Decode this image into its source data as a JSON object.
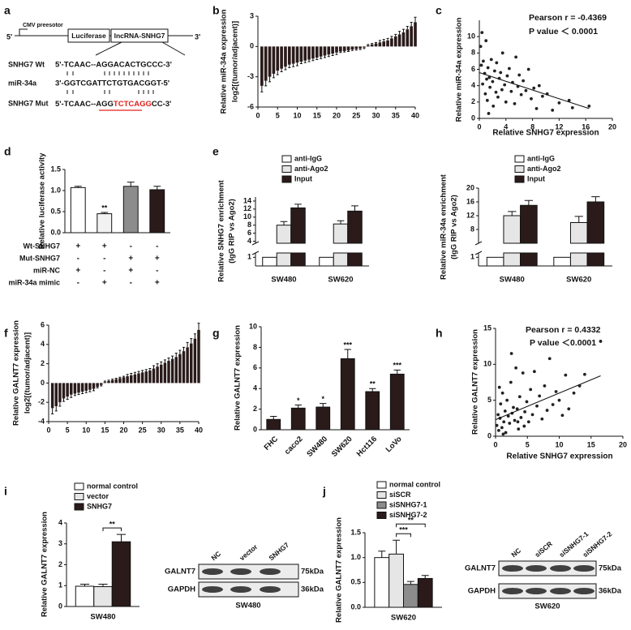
{
  "diagram": {
    "label": "a",
    "five_prime": "5'",
    "promoter": "CMV preesotor",
    "luciferase": "Luciferase",
    "lncrna": "lncRNA-SNHG7",
    "three_prime": "3'",
    "rows": [
      {
        "name": "SNHG7 Wt",
        "sequence": [
          "5'-TCAAC--AGGACACTGCCC-3'"
        ]
      },
      {
        "name": "miR-34a",
        "sequence": [
          "3'-GGTCGATTCTGTGACGGT-5'"
        ]
      },
      {
        "name": "SNHG7 Mut",
        "sequence": [
          "5'-TCAAC--AGG",
          "TCTCAGG",
          "CC-3'"
        ]
      }
    ]
  },
  "chart_data": [
    {
      "type": "bar",
      "label": "b",
      "ylabel": [
        "Relative miR-34a expression",
        "log2[(tumor/adjacent)]"
      ],
      "color": "#2a1a1a",
      "x": [
        1,
        2,
        3,
        4,
        5,
        6,
        7,
        8,
        9,
        10,
        11,
        12,
        13,
        14,
        15,
        16,
        17,
        18,
        19,
        20,
        21,
        22,
        23,
        24,
        25,
        26,
        27,
        28,
        29,
        30,
        31,
        32,
        33,
        34,
        35,
        36,
        37,
        38,
        39,
        40
      ],
      "values": [
        -3.9,
        -3.4,
        -3.0,
        -2.7,
        -2.4,
        -2.2,
        -2.0,
        -1.8,
        -1.7,
        -1.6,
        -1.5,
        -1.4,
        -1.3,
        -1.2,
        -1.1,
        -1.0,
        -0.9,
        -0.8,
        -0.7,
        -0.6,
        -0.5,
        -0.45,
        -0.4,
        -0.3,
        -0.25,
        -0.2,
        -0.1,
        0.1,
        0.2,
        0.3,
        0.4,
        0.5,
        0.6,
        0.8,
        1.0,
        1.2,
        1.4,
        1.7,
        2.0,
        2.4
      ],
      "errors": [
        0.6,
        0.5,
        0.5,
        0.4,
        0.4,
        0.3,
        0.3,
        0.3,
        0.3,
        0.3,
        0.2,
        0.2,
        0.2,
        0.2,
        0.2,
        0.2,
        0.2,
        0.2,
        0.2,
        0.2,
        0.1,
        0.1,
        0.1,
        0.1,
        0.1,
        0.1,
        0.1,
        0.1,
        0.1,
        0.1,
        0.2,
        0.2,
        0.2,
        0.2,
        0.2,
        0.3,
        0.3,
        0.3,
        0.4,
        0.5
      ],
      "xlim": [
        0,
        40
      ],
      "xticks": [
        0,
        5,
        10,
        15,
        20,
        25,
        30,
        35,
        40
      ],
      "ylim": [
        -6,
        3
      ],
      "yticks": [
        -6,
        -3,
        0,
        3
      ]
    },
    {
      "type": "scatter",
      "label": "c",
      "xlabel": "Relative SNHG7 expression",
      "ylabel": [
        "Relative miR-34a expression"
      ],
      "annotations": [
        "Pearson r = -0.4369",
        "P value ＜ 0.0001"
      ],
      "x": [
        0.2,
        0.3,
        0.5,
        0.6,
        0.8,
        0.9,
        1.0,
        1.1,
        1.2,
        1.3,
        1.5,
        1.6,
        1.8,
        2.0,
        2.1,
        2.3,
        2.5,
        2.6,
        2.8,
        3.0,
        3.2,
        3.4,
        3.5,
        3.8,
        4.0,
        4.2,
        4.5,
        4.8,
        5.0,
        5.3,
        5.5,
        5.8,
        6.0,
        6.3,
        6.6,
        7.0,
        7.4,
        7.8,
        8.2,
        8.6,
        9.0,
        9.5,
        10.2,
        11.0,
        12.0,
        13.5,
        14.0,
        16.5,
        0.4,
        1.4
      ],
      "y": [
        8.8,
        6.5,
        4.2,
        7.0,
        5.5,
        3.0,
        9.5,
        4.8,
        2.2,
        6.2,
        5.0,
        3.8,
        7.2,
        4.5,
        1.5,
        5.8,
        3.2,
        6.8,
        2.6,
        4.9,
        5.6,
        3.5,
        8.0,
        4.1,
        2.0,
        5.2,
        6.1,
        3.3,
        4.4,
        1.8,
        7.5,
        3.9,
        5.3,
        2.9,
        4.6,
        3.4,
        6.0,
        2.4,
        3.7,
        1.2,
        4.0,
        2.7,
        3.0,
        1.0,
        1.9,
        2.2,
        1.3,
        1.5,
        10.5,
        0.6
      ],
      "trendline": {
        "x": [
          0,
          16.5
        ],
        "y": [
          5.6,
          1.2
        ]
      },
      "xlim": [
        0,
        20
      ],
      "xticks": [
        0,
        4,
        8,
        12,
        16,
        20
      ],
      "ylim": [
        0,
        12
      ],
      "yticks": [
        0,
        2,
        4,
        6,
        8,
        10
      ]
    },
    {
      "type": "bar",
      "label": "d",
      "ylabel": [
        "Relative luciferase activity"
      ],
      "values": [
        1.07,
        0.45,
        1.1,
        1.02
      ],
      "errors": [
        0.03,
        0.03,
        0.1,
        0.08
      ],
      "colors": [
        "#ffffff",
        "#f2f2f2",
        "#8c8c8c",
        "#2a1a1a"
      ],
      "significance": [
        null,
        "**",
        null,
        null
      ],
      "conditions": [
        {
          "name": "Wt-SNHG7",
          "signs": [
            "+",
            "+",
            "-",
            "-"
          ]
        },
        {
          "name": "Mut-SNHG7",
          "signs": [
            "-",
            "-",
            "+",
            "+"
          ]
        },
        {
          "name": "miR-NC",
          "signs": [
            "+",
            "-",
            "+",
            "-"
          ]
        },
        {
          "name": "miR-34a mimic",
          "signs": [
            "-",
            "+",
            "-",
            "+"
          ]
        }
      ],
      "ylim": [
        0,
        1.5
      ],
      "yticks": [
        {
          "value": 0,
          "label": "0.0"
        },
        {
          "value": 0.5,
          "label": "0.5"
        },
        {
          "value": 1,
          "label": "1.0"
        },
        {
          "value": 1.5,
          "label": "1.5"
        }
      ]
    },
    {
      "type": "bar",
      "label": "e",
      "ylabel": [
        "Relative SNHG7 enrichment",
        "(IgG RIP vs Ago2)"
      ],
      "categories": [
        "SW480",
        "SW620"
      ],
      "series": [
        {
          "name": "anti-IgG",
          "color": "#ffffff",
          "values": [
            1,
            1
          ],
          "errors": [
            0,
            0
          ]
        },
        {
          "name": "anti-Ago2",
          "color": "#e6e6e6",
          "values": [
            8.0,
            8.3
          ],
          "errors": [
            0.9,
            0.8
          ]
        },
        {
          "name": "Input",
          "color": "#2a1a1a",
          "values": [
            12.3,
            11.5
          ],
          "errors": [
            0.9,
            1.3
          ]
        }
      ],
      "ylim": [
        0,
        15
      ],
      "axis_break": [
        1.5,
        3.5
      ],
      "yticks": [
        1,
        4,
        6,
        8,
        10,
        12,
        14
      ]
    },
    {
      "type": "bar",
      "ylabel": [
        "Relative miR-34a enrichment",
        "(IgG RIP vs Ago2)"
      ],
      "categories": [
        "SW480",
        "SW620"
      ],
      "series": [
        {
          "name": "anti-IgG",
          "color": "#ffffff",
          "values": [
            1,
            1
          ],
          "errors": [
            0,
            0
          ]
        },
        {
          "name": "anti-Ago2",
          "color": "#e6e6e6",
          "values": [
            12.0,
            10.0
          ],
          "errors": [
            1.2,
            1.8
          ]
        },
        {
          "name": "Input",
          "color": "#2a1a1a",
          "values": [
            15.0,
            16.0
          ],
          "errors": [
            1.4,
            1.5
          ]
        }
      ],
      "ylim": [
        0,
        20
      ],
      "axis_break": [
        1.5,
        4
      ],
      "yticks": [
        1,
        8,
        12,
        16,
        20
      ]
    },
    {
      "type": "bar",
      "label": "f",
      "ylabel": [
        "Relative GALNT7 expression",
        "log2[(tumor/adjacent)]"
      ],
      "color": "#2a1a1a",
      "x": [
        1,
        2,
        3,
        4,
        5,
        6,
        7,
        8,
        9,
        10,
        11,
        12,
        13,
        14,
        15,
        16,
        17,
        18,
        19,
        20,
        21,
        22,
        23,
        24,
        25,
        26,
        27,
        28,
        29,
        30,
        31,
        32,
        33,
        34,
        35,
        36,
        37,
        38,
        39,
        40
      ],
      "values": [
        -2.6,
        -2.4,
        -2.0,
        -1.6,
        -1.4,
        -1.2,
        -1.1,
        -1.0,
        -0.9,
        -0.8,
        -0.7,
        -0.6,
        -0.4,
        -0.2,
        0.1,
        0.2,
        0.3,
        0.4,
        0.5,
        0.6,
        0.7,
        0.8,
        0.9,
        1.0,
        1.1,
        1.2,
        1.3,
        1.5,
        1.7,
        1.9,
        2.1,
        2.3,
        2.5,
        2.7,
        3.0,
        3.3,
        3.7,
        4.1,
        4.6,
        5.5
      ],
      "errors": [
        0.6,
        0.5,
        0.4,
        0.3,
        0.3,
        0.3,
        0.2,
        0.2,
        0.2,
        0.2,
        0.2,
        0.2,
        0.1,
        0.1,
        0.1,
        0.1,
        0.1,
        0.1,
        0.1,
        0.1,
        0.2,
        0.2,
        0.2,
        0.2,
        0.2,
        0.2,
        0.2,
        0.3,
        0.3,
        0.3,
        0.3,
        0.3,
        0.3,
        0.4,
        0.4,
        0.4,
        0.5,
        0.5,
        0.5,
        0.7
      ],
      "xlim": [
        0,
        40
      ],
      "xticks": [
        0,
        5,
        10,
        15,
        20,
        25,
        30,
        35,
        40
      ],
      "ylim": [
        -4,
        6
      ],
      "yticks": [
        -4,
        -2,
        0,
        2,
        4,
        6
      ]
    },
    {
      "type": "bar",
      "label": "g",
      "ylabel": [
        "Relative GALNT7 expression"
      ],
      "color": "#2a1a1a",
      "categories": [
        "FHC",
        "caco2",
        "SW480",
        "SW620",
        "Hct116",
        "LoVo"
      ],
      "values": [
        1.0,
        2.1,
        2.2,
        6.9,
        3.7,
        5.4
      ],
      "errors": [
        0.3,
        0.3,
        0.35,
        0.9,
        0.3,
        0.4
      ],
      "significance": [
        null,
        "*",
        "*",
        "***",
        "**",
        "***"
      ],
      "ylim": [
        0,
        10
      ],
      "yticks": [
        0,
        2,
        4,
        6,
        8,
        10
      ]
    },
    {
      "type": "scatter",
      "label": "h",
      "xlabel": "Relative SNHG7 expression",
      "ylabel": [
        "Relative GALNT7 expression"
      ],
      "annotations": [
        "Pearson r = 0.4332",
        "P value ＜0.0001"
      ],
      "x": [
        0.2,
        0.4,
        0.5,
        0.7,
        0.8,
        1.0,
        1.1,
        1.3,
        1.5,
        1.6,
        1.8,
        2.0,
        2.2,
        2.4,
        2.6,
        2.8,
        3.0,
        3.2,
        3.4,
        3.6,
        3.8,
        4.0,
        4.3,
        4.6,
        4.9,
        5.2,
        5.5,
        5.8,
        6.1,
        6.5,
        6.9,
        7.3,
        7.7,
        8.1,
        8.5,
        9.0,
        9.5,
        10.0,
        10.5,
        11.0,
        11.5,
        12.3,
        13.2,
        14.0,
        16.5,
        0.6,
        1.2,
        2.5,
        3.5,
        4.5
      ],
      "y": [
        1.5,
        3.0,
        0.8,
        2.5,
        4.5,
        1.2,
        6.0,
        2.0,
        3.5,
        0.5,
        5.0,
        2.8,
        1.8,
        7.5,
        3.2,
        4.0,
        2.2,
        9.5,
        3.8,
        1.0,
        5.5,
        2.6,
        8.8,
        3.4,
        4.8,
        2.0,
        6.5,
        3.0,
        9.0,
        4.2,
        5.6,
        2.4,
        7.0,
        3.6,
        10.8,
        4.4,
        6.2,
        5.0,
        2.9,
        8.5,
        3.8,
        6.0,
        7.0,
        8.6,
        13.2,
        6.8,
        0.3,
        11.5,
        2.0,
        1.4
      ],
      "trendline": {
        "x": [
          0,
          16.5
        ],
        "y": [
          2.3,
          8.4
        ]
      },
      "xlim": [
        0,
        20
      ],
      "xticks": [
        0,
        5,
        10,
        15,
        20
      ],
      "ylim": [
        0,
        15
      ],
      "yticks": [
        0,
        5,
        10,
        15
      ]
    },
    {
      "type": "bar",
      "label": "i",
      "ylabel": [
        "Relative GALNT7 expression"
      ],
      "categories": [
        "SW480"
      ],
      "series": [
        {
          "name": "normal control",
          "color": "#ffffff",
          "values": [
            0.97
          ],
          "errors": [
            0.1
          ]
        },
        {
          "name": "vector",
          "color": "#e6e6e6",
          "values": [
            0.95
          ],
          "errors": [
            0.12
          ]
        },
        {
          "name": "SNHG7",
          "color": "#2a1a1a",
          "values": [
            3.1
          ],
          "errors": [
            0.35
          ]
        }
      ],
      "brackets": [
        {
          "between": [
            "vector",
            "SNHG7"
          ],
          "label": "**"
        }
      ],
      "ylim": [
        0,
        4
      ],
      "yticks": [
        0,
        1,
        2,
        3,
        4
      ]
    },
    {
      "type": "bar",
      "label": "j",
      "ylabel": [
        "Relative GALNT7 expression"
      ],
      "categories": [
        "SW620"
      ],
      "series": [
        {
          "name": "normal control",
          "color": "#ffffff",
          "values": [
            1.0
          ],
          "errors": [
            0.13
          ]
        },
        {
          "name": "siSCR",
          "color": "#e6e6e6",
          "values": [
            1.07
          ],
          "errors": [
            0.28
          ]
        },
        {
          "name": "siSNHG7-1",
          "color": "#8c8c8c",
          "values": [
            0.46
          ],
          "errors": [
            0.06
          ]
        },
        {
          "name": "siSNHG7-2",
          "color": "#2a1a1a",
          "values": [
            0.58
          ],
          "errors": [
            0.06
          ]
        }
      ],
      "brackets": [
        {
          "between": [
            "siSCR",
            "siSNHG7-1"
          ],
          "label": "***"
        },
        {
          "between": [
            "siSCR",
            "siSNHG7-2"
          ],
          "label": "**"
        }
      ],
      "ylim": [
        0,
        1.5
      ],
      "yticks": [
        {
          "value": 0,
          "label": "0.0"
        },
        {
          "value": 0.5,
          "label": "0.5"
        },
        {
          "value": 1,
          "label": "1.0"
        },
        {
          "value": 1.5,
          "label": "1.5"
        }
      ]
    }
  ],
  "blots": [
    {
      "lanes": [
        "NC",
        "vector",
        "SNHG7"
      ],
      "rows": [
        {
          "protein": "GALNT7",
          "size": "75kDa"
        },
        {
          "protein": "GAPDH",
          "size": "36kDa"
        }
      ],
      "cell_line": "SW480"
    },
    {
      "lanes": [
        "NC",
        "siSCR",
        "siSNHG7-1",
        "siSNHG7-2"
      ],
      "rows": [
        {
          "protein": "GALNT7",
          "size": "75kDa"
        },
        {
          "protein": "GAPDH",
          "size": "36kDa"
        }
      ],
      "cell_line": "SW620"
    }
  ]
}
